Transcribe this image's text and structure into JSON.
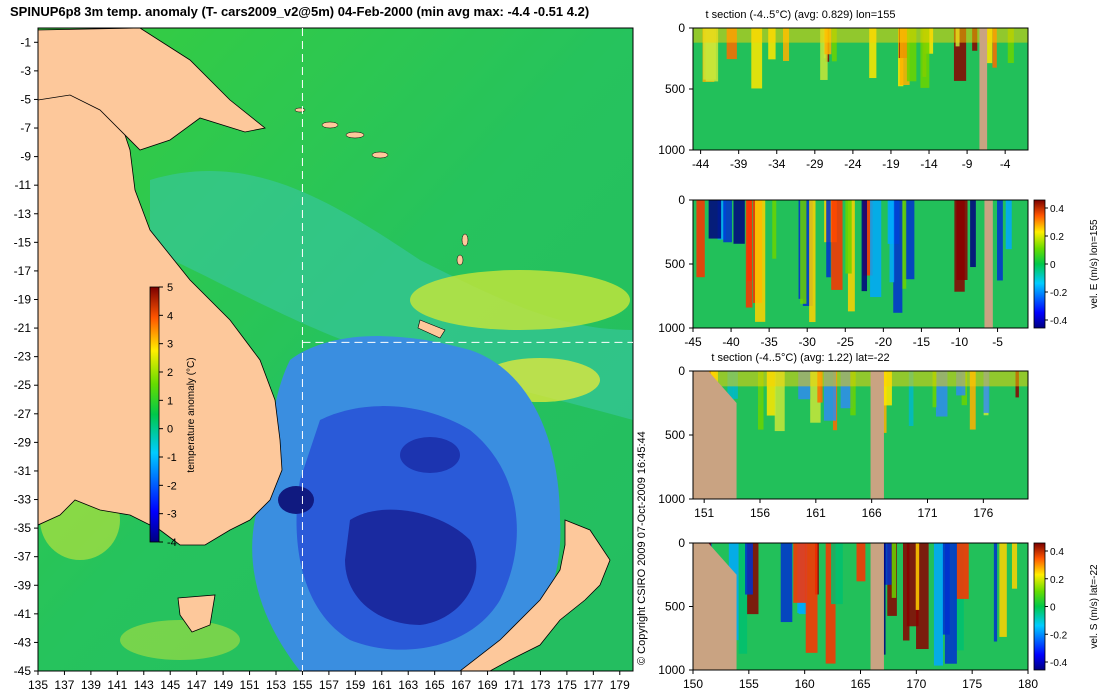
{
  "title": "SPINUP6p8 3m temp. anomaly (T- cars2009_v2@5m) 04-Feb-2000 (min avg max: -4.4 -0.51 4.2)",
  "copyright": "© Copyright CSIRO 2009   07-Oct-2009 16:45:44",
  "map": {
    "x_ticks": [
      "135",
      "137",
      "139",
      "141",
      "143",
      "145",
      "147",
      "149",
      "151",
      "153",
      "155",
      "157",
      "159",
      "161",
      "163",
      "165",
      "167",
      "169",
      "171",
      "173",
      "175",
      "177",
      "179"
    ],
    "y_ticks": [
      "-1",
      "-3",
      "-5",
      "-7",
      "-9",
      "-11",
      "-13",
      "-15",
      "-17",
      "-19",
      "-21",
      "-23",
      "-25",
      "-27",
      "-29",
      "-31",
      "-33",
      "-35",
      "-37",
      "-39",
      "-41",
      "-43",
      "-45"
    ],
    "lon_line": 155,
    "lat_line": -22,
    "colorbar": {
      "label": "temperature anomaly (°C)",
      "ticks": [
        "5",
        "4",
        "3",
        "2",
        "1",
        "0",
        "-1",
        "-2",
        "-3",
        "-4"
      ]
    }
  },
  "chart_data": [
    {
      "type": "heatmap",
      "name": "map",
      "title": "SPINUP6p8 3m temp. anomaly (T- cars2009_v2@5m) 04-Feb-2000 (min avg max: -4.4 -0.51 4.2)",
      "xlim": [
        135,
        180
      ],
      "ylim": [
        -45,
        0
      ],
      "colorbar_range": [
        -4,
        5
      ],
      "stats": {
        "min": -4.4,
        "avg": -0.51,
        "max": 4.2
      }
    },
    {
      "type": "heatmap",
      "name": "panel1",
      "title": "t section (-4..5°C) (avg: 0.829) lon=155",
      "xlim": [
        -45,
        -1
      ],
      "ylim": [
        1000,
        0
      ],
      "x_ticks": [
        "-44",
        "-39",
        "-34",
        "-29",
        "-24",
        "-19",
        "-14",
        "-9",
        "-4"
      ],
      "y_ticks": [
        "0",
        "500",
        "1000"
      ],
      "avg": 0.829
    },
    {
      "type": "heatmap",
      "name": "panel2",
      "title": "",
      "xlim": [
        -45,
        -1
      ],
      "ylim": [
        1000,
        0
      ],
      "x_ticks": [
        "-45",
        "-40",
        "-35",
        "-30",
        "-25",
        "-20",
        "-15",
        "-10",
        "-5"
      ],
      "y_ticks": [
        "0",
        "500",
        "1000"
      ],
      "colorbar_label": "vel. E (m/s) lon=155",
      "colorbar_ticks": [
        "0.4",
        "0.2",
        "0",
        "-0.2",
        "-0.4"
      ]
    },
    {
      "type": "heatmap",
      "name": "panel3",
      "title": "t section (-4..5°C) (avg: 1.22) lat=-22",
      "xlim": [
        150,
        180
      ],
      "ylim": [
        1000,
        0
      ],
      "x_ticks": [
        "151",
        "156",
        "161",
        "166",
        "171",
        "176"
      ],
      "y_ticks": [
        "0",
        "500",
        "1000"
      ],
      "avg": 1.22
    },
    {
      "type": "heatmap",
      "name": "panel4",
      "title": "",
      "xlim": [
        150,
        180
      ],
      "ylim": [
        1000,
        0
      ],
      "x_ticks": [
        "150",
        "155",
        "160",
        "165",
        "170",
        "175",
        "180"
      ],
      "y_ticks": [
        "0",
        "500",
        "1000"
      ],
      "colorbar_label": "vel. S (m/s) lat=-22",
      "colorbar_ticks": [
        "0.4",
        "0.2",
        "0",
        "-0.2",
        "-0.4"
      ]
    }
  ]
}
